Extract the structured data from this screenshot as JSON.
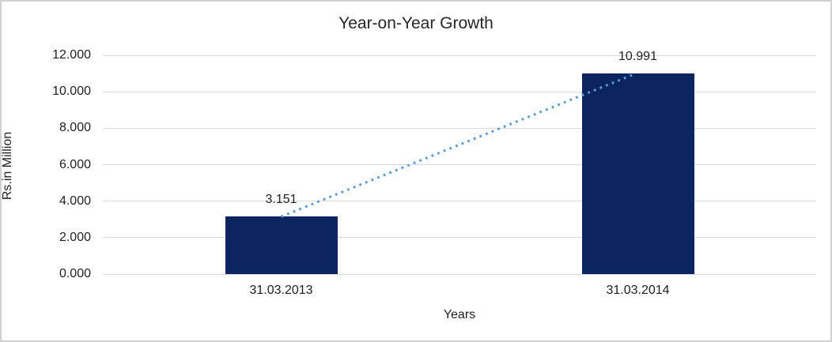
{
  "chart_data": {
    "type": "bar",
    "title": "Year-on-Year Growth",
    "xlabel": "Years",
    "ylabel": "Rs.in Million",
    "categories": [
      "31.03.2013",
      "31.03.2014"
    ],
    "values": [
      3.151,
      10.991
    ],
    "value_labels": [
      "3.151",
      "10.991"
    ],
    "ylim": [
      0,
      12
    ],
    "yticks": [
      0,
      2,
      4,
      6,
      8,
      10,
      12
    ],
    "ytick_labels": [
      "0.000",
      "2.000",
      "4.000",
      "6.000",
      "8.000",
      "10.000",
      "12.000"
    ],
    "grid": true,
    "legend": false,
    "bar_color": "#0c2561",
    "gridline_color": "#d9d9d9",
    "trendline": {
      "style": "dotted",
      "color": "#5b9bd5",
      "from_value": 3.151,
      "to_value": 10.991
    }
  }
}
